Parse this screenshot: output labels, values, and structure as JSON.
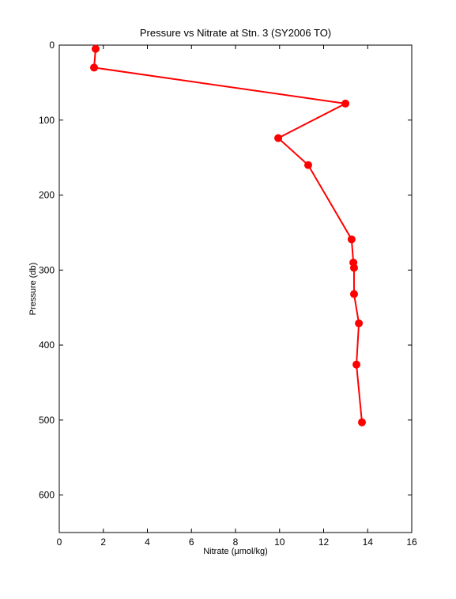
{
  "chart_data": {
    "type": "line",
    "title": "Pressure vs Nitrate at Stn. 3 (SY2006 TO)",
    "x_label": "Nitrate (μmol/kg)",
    "y_label": "Pressure (db)",
    "x": [
      1.65,
      1.58,
      12.99,
      9.94,
      11.3,
      13.27,
      13.35,
      13.38,
      13.38,
      13.6,
      13.49,
      13.74
    ],
    "values": [
      5,
      30,
      78,
      124,
      160,
      259,
      290,
      297,
      332,
      371,
      426,
      503
    ],
    "color": "#ff0000",
    "markers": true,
    "xlim": [
      0,
      16
    ],
    "xticks": [
      0,
      2,
      4,
      6,
      8,
      10,
      12,
      14,
      16
    ],
    "ylim": [
      0,
      650
    ],
    "yticks": [
      0,
      100,
      200,
      300,
      400,
      500,
      600
    ],
    "y_inverted": true
  }
}
